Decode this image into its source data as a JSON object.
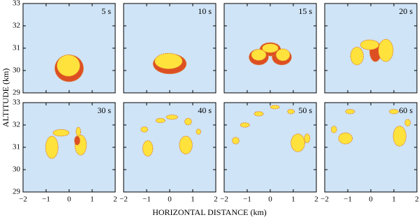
{
  "chart_data": {
    "type": "panels",
    "xlabel": "HORIZONTAL DISTANCE (km)",
    "ylabel": "ALTITUDE (km)",
    "xlim": [
      -2,
      2
    ],
    "xticks": [
      {
        "value": -2,
        "label": "−2"
      },
      {
        "value": -1,
        "label": "−1"
      },
      0,
      1,
      2
    ],
    "ylim": [
      29,
      33
    ],
    "yticks": [
      29,
      30,
      31,
      32,
      33
    ],
    "panels": [
      {
        "label": "5 s"
      },
      {
        "label": "10 s"
      },
      {
        "label": "15 s"
      },
      {
        "label": "20 s"
      },
      {
        "label": "30 s"
      },
      {
        "label": "40 s"
      },
      {
        "label": "50 s"
      },
      {
        "label": "60 s"
      }
    ],
    "background": "#cfe4f6"
  }
}
